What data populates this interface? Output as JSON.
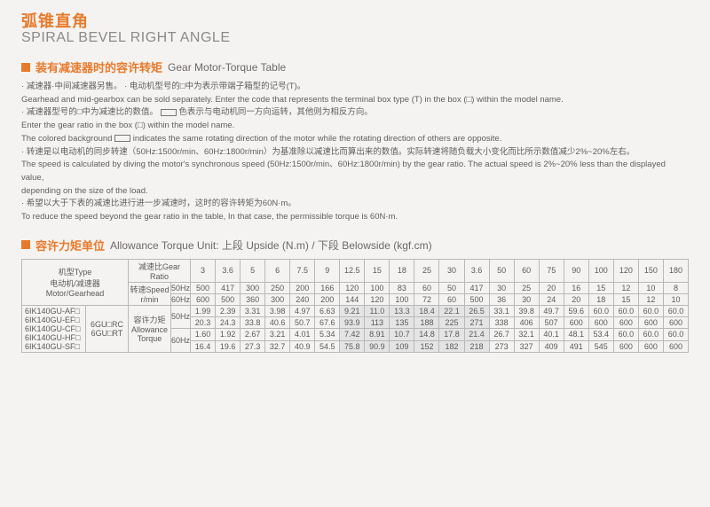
{
  "title": {
    "zh": "弧锥直角",
    "en": "SPIRAL BEVEL RIGHT ANGLE"
  },
  "section1": {
    "zh": "装有减速器时的容许转矩",
    "en": "Gear Motor-Torque Table"
  },
  "section2": {
    "zh": "容许力矩单位",
    "en": "Allowance Torque Unit: 上段 Upside (N.m) / 下段 Belowside (kgf.cm)"
  },
  "notes": {
    "l1": "· 减速器·中间减速器另售。 · 电动机型号的□中为表示带端子箱型的记号(T)。",
    "l2": "Gearhead and mid-gearbox can be sold separately. Enter the code that represents the terminal box type (T) in the box (□) within the model name.",
    "l3a": "· 减速器型号的□中为减速比的数值。",
    "l3b": "色表示与电动机同一方向运转，其他则为相反方向。",
    "l4": "Enter the gear ratio in the box (□) within the model name.",
    "l5a": "The colored background",
    "l5b": "indicates the same rotating direction of the motor while the rotating direction of others are opposite.",
    "l6": "· 转速是以电动机的同步转速（50Hz:1500r/min、60Hz:1800r/min）为基准除以减速比而算出来的数值。实际转速将随负载大小变化而比所示数值减少2%~20%左右。",
    "l7": "The speed is calculated by diving the motor's synchronous speed (50Hz:1500r/min、60Hz:1800r/min) by the gear ratio. The actual speed is 2%~20% less than the displayed value,",
    "l8": "depending on the size of the load.",
    "l9": "· 希望以大于下表的减速比进行进一步减速时，这时的容许转矩为60N·m。",
    "l10": "To reduce the speed beyond the gear ratio in the table, In that case, the permissible torque is 60N·m."
  },
  "table": {
    "typeLabel": "机型Type\n电动机/减速器\nMotor/Gearhead",
    "ratioLabel": "减速比Gear Ratio",
    "speedLabel": "转速Speed\nr/min",
    "torqueLabel": "容许力矩\nAllowance\nTorque",
    "midLabel": "6GU□RC\n6GU□RT",
    "ratios": [
      "3",
      "3.6",
      "5",
      "6",
      "7.5",
      "9",
      "12.5",
      "15",
      "18",
      "25",
      "30",
      "3.6",
      "50",
      "60",
      "75",
      "90",
      "100",
      "120",
      "150",
      "180"
    ],
    "speed50": [
      "500",
      "417",
      "300",
      "250",
      "200",
      "166",
      "120",
      "100",
      "83",
      "60",
      "50",
      "417",
      "30",
      "25",
      "20",
      "16",
      "15",
      "12",
      "10",
      "8"
    ],
    "speed60": [
      "600",
      "500",
      "360",
      "300",
      "240",
      "200",
      "144",
      "120",
      "100",
      "72",
      "60",
      "500",
      "36",
      "30",
      "24",
      "20",
      "18",
      "15",
      "12",
      "10"
    ],
    "t50a": [
      "1.99",
      "2.39",
      "3.31",
      "3.98",
      "4.97",
      "6.63",
      "9.21",
      "11.0",
      "13.3",
      "18.4",
      "22.1",
      "26.5",
      "33.1",
      "39.8",
      "49.7",
      "59.6",
      "60.0",
      "60.0",
      "60.0",
      "60.0"
    ],
    "t50b": [
      "20.3",
      "24.3",
      "33.8",
      "40.6",
      "50.7",
      "67.6",
      "93.9",
      "113",
      "135",
      "188",
      "225",
      "271",
      "338",
      "406",
      "507",
      "600",
      "600",
      "600",
      "600",
      "600"
    ],
    "t60a": [
      "1.60",
      "1.92",
      "2.67",
      "3.21",
      "4.01",
      "5.34",
      "7.42",
      "8.91",
      "10.7",
      "14.8",
      "17.8",
      "21.4",
      "26.7",
      "32.1",
      "40.1",
      "48.1",
      "53.4",
      "60.0",
      "60.0",
      "60.0"
    ],
    "t60b": [
      "16.4",
      "19.6",
      "27.3",
      "32.7",
      "40.9",
      "54.5",
      "75.8",
      "90.9",
      "109",
      "152",
      "182",
      "218",
      "273",
      "327",
      "409",
      "491",
      "545",
      "600",
      "600",
      "600"
    ],
    "models": [
      "6IK140GU-AF□",
      "6IK140GU-EF□",
      "6IK140GU-CF□",
      "6IK140GU-HF□",
      "6IK140GU-SF□"
    ],
    "highlightCols": [
      6,
      7,
      8,
      9,
      10,
      11
    ]
  }
}
